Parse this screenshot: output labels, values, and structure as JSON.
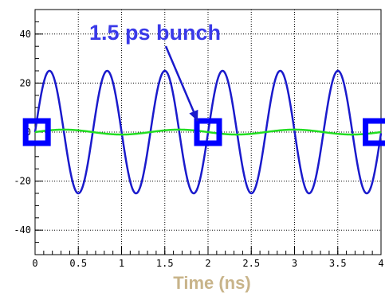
{
  "chart_data": {
    "type": "line",
    "xlabel": "Time (ns)",
    "ylabel": "",
    "xlim": [
      0,
      4
    ],
    "ylim": [
      -50,
      50
    ],
    "x_ticks": [
      "0",
      "0.5",
      "1",
      "1.5",
      "2",
      "2.5",
      "3",
      "3.5",
      "4"
    ],
    "y_ticks": [
      "40",
      "20",
      "0",
      "-20",
      "-40"
    ],
    "grid": true,
    "series": [
      {
        "color": "#1a1acc",
        "amplitude": 25,
        "period_ns": 0.667,
        "phase_zero_crossing_ns": 0.0
      },
      {
        "color": "#22dd22",
        "amplitude": 1.0,
        "period_ns": 1.333,
        "phase_zero_crossing_ns": 0.0
      }
    ],
    "markers": [
      {
        "shape": "square",
        "x": 0.02,
        "y": 0,
        "color": "#0000ff"
      },
      {
        "shape": "square",
        "x": 2.0,
        "y": 0,
        "color": "#0000ff"
      },
      {
        "shape": "square",
        "x": 3.95,
        "y": 0,
        "color": "#0000ff"
      }
    ],
    "annotation": {
      "text": "1.5 ps bunch",
      "color": "#3a3ae8",
      "arrow_to": [
        1.88,
        4.5
      ]
    },
    "axis_title_color": "#c8b48a"
  }
}
